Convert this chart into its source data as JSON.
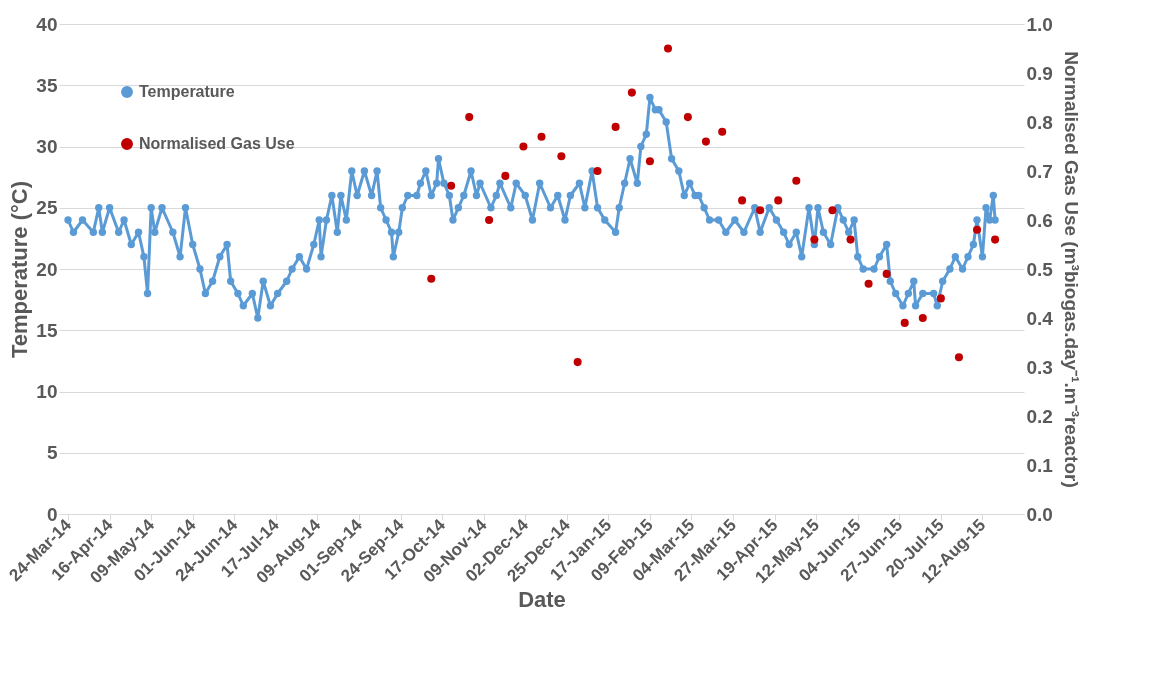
{
  "chart_data": {
    "type": "line",
    "xlabel": "Date",
    "ylabel": "Temperature (°C)",
    "y2label": "Normalised  Gas Use (m³biogas.day⁻¹.m⁻³reactor)",
    "xlim": [
      "2014-03-19",
      "2015-09-04"
    ],
    "xticks": [
      {
        "value": "2014-03-24",
        "label": "24-Mar-14"
      },
      {
        "value": "2014-04-16",
        "label": "16-Apr-14"
      },
      {
        "value": "2014-05-09",
        "label": "09-May-14"
      },
      {
        "value": "2014-06-01",
        "label": "01-Jun-14"
      },
      {
        "value": "2014-06-24",
        "label": "24-Jun-14"
      },
      {
        "value": "2014-07-17",
        "label": "17-Jul-14"
      },
      {
        "value": "2014-08-09",
        "label": "09-Aug-14"
      },
      {
        "value": "2014-09-01",
        "label": "01-Sep-14"
      },
      {
        "value": "2014-09-24",
        "label": "24-Sep-14"
      },
      {
        "value": "2014-10-17",
        "label": "17-Oct-14"
      },
      {
        "value": "2014-11-09",
        "label": "09-Nov-14"
      },
      {
        "value": "2014-12-02",
        "label": "02-Dec-14"
      },
      {
        "value": "2014-12-25",
        "label": "25-Dec-14"
      },
      {
        "value": "2015-01-17",
        "label": "17-Jan-15"
      },
      {
        "value": "2015-02-09",
        "label": "09-Feb-15"
      },
      {
        "value": "2015-03-04",
        "label": "04-Mar-15"
      },
      {
        "value": "2015-03-27",
        "label": "27-Mar-15"
      },
      {
        "value": "2015-04-19",
        "label": "19-Apr-15"
      },
      {
        "value": "2015-05-12",
        "label": "12-May-15"
      },
      {
        "value": "2015-06-04",
        "label": "04-Jun-15"
      },
      {
        "value": "2015-06-27",
        "label": "27-Jun-15"
      },
      {
        "value": "2015-07-20",
        "label": "20-Jul-15"
      },
      {
        "value": "2015-08-12",
        "label": "12-Aug-15"
      }
    ],
    "ylim": [
      0,
      40
    ],
    "yticks": [
      0,
      5,
      10,
      15,
      20,
      25,
      30,
      35,
      40
    ],
    "y2lim": [
      0,
      1
    ],
    "y2ticks": [
      {
        "value": 0,
        "label": "0.0"
      },
      0.1,
      0.2,
      0.3,
      0.4,
      0.5,
      0.6,
      0.7,
      0.8,
      0.9,
      {
        "value": 1,
        "label": "1.0"
      }
    ],
    "grid": "y",
    "legend": "top left",
    "series": [
      {
        "name": "Temperature",
        "marker": "circle",
        "color": "#5b9bd5",
        "x": [
          "2014-03-24",
          "2014-03-27",
          "2014-04-01",
          "2014-04-07",
          "2014-04-10",
          "2014-04-12",
          "2014-04-16",
          "2014-04-21",
          "2014-04-24",
          "2014-04-28",
          "2014-05-02",
          "2014-05-05",
          "2014-05-07",
          "2014-05-09",
          "2014-05-11",
          "2014-05-15",
          "2014-05-21",
          "2014-05-25",
          "2014-05-28",
          "2014-06-01",
          "2014-06-05",
          "2014-06-08",
          "2014-06-12",
          "2014-06-16",
          "2014-06-20",
          "2014-06-22",
          "2014-06-26",
          "2014-06-29",
          "2014-07-04",
          "2014-07-07",
          "2014-07-10",
          "2014-07-14",
          "2014-07-18",
          "2014-07-23",
          "2014-07-26",
          "2014-07-30",
          "2014-08-03",
          "2014-08-07",
          "2014-08-10",
          "2014-08-11",
          "2014-08-14",
          "2014-08-17",
          "2014-08-20",
          "2014-08-22",
          "2014-08-25",
          "2014-08-28",
          "2014-08-31",
          "2014-09-04",
          "2014-09-08",
          "2014-09-11",
          "2014-09-13",
          "2014-09-16",
          "2014-09-19",
          "2014-09-20",
          "2014-09-23",
          "2014-09-25",
          "2014-09-28",
          "2014-10-03",
          "2014-10-05",
          "2014-10-08",
          "2014-10-11",
          "2014-10-14",
          "2014-10-15",
          "2014-10-18",
          "2014-10-21",
          "2014-10-23",
          "2014-10-26",
          "2014-10-29",
          "2014-11-02",
          "2014-11-05",
          "2014-11-07",
          "2014-11-13",
          "2014-11-16",
          "2014-11-18",
          "2014-11-24",
          "2014-11-27",
          "2014-12-02",
          "2014-12-06",
          "2014-12-10",
          "2014-12-16",
          "2014-12-20",
          "2014-12-24",
          "2014-12-27",
          "2015-01-01",
          "2015-01-04",
          "2015-01-08",
          "2015-01-11",
          "2015-01-15",
          "2015-01-21",
          "2015-01-23",
          "2015-01-26",
          "2015-01-29",
          "2015-02-02",
          "2015-02-04",
          "2015-02-07",
          "2015-02-09",
          "2015-02-12",
          "2015-02-14",
          "2015-02-18",
          "2015-02-21",
          "2015-02-25",
          "2015-02-28",
          "2015-03-03",
          "2015-03-06",
          "2015-03-08",
          "2015-03-11",
          "2015-03-14",
          "2015-03-19",
          "2015-03-23",
          "2015-03-28",
          "2015-04-02",
          "2015-04-08",
          "2015-04-11",
          "2015-04-16",
          "2015-04-20",
          "2015-04-24",
          "2015-04-27",
          "2015-05-01",
          "2015-05-04",
          "2015-05-08",
          "2015-05-11",
          "2015-05-13",
          "2015-05-16",
          "2015-05-20",
          "2015-05-24",
          "2015-05-27",
          "2015-05-30",
          "2015-06-02",
          "2015-06-04",
          "2015-06-07",
          "2015-06-13",
          "2015-06-16",
          "2015-06-20",
          "2015-06-22",
          "2015-06-25",
          "2015-06-29",
          "2015-07-02",
          "2015-07-05",
          "2015-07-06",
          "2015-07-10",
          "2015-07-16",
          "2015-07-18",
          "2015-07-21",
          "2015-07-25",
          "2015-07-28",
          "2015-08-01",
          "2015-08-04",
          "2015-08-07",
          "2015-08-09",
          "2015-08-12",
          "2015-08-14",
          "2015-08-16",
          "2015-08-18",
          "2015-08-19"
        ],
        "values": [
          24,
          23,
          24,
          23,
          25,
          23,
          25,
          23,
          24,
          22,
          23,
          21,
          18,
          25,
          23,
          25,
          23,
          21,
          25,
          22,
          20,
          18,
          19,
          21,
          22,
          19,
          18,
          17,
          18,
          16,
          19,
          17,
          18,
          19,
          20,
          21,
          20,
          22,
          24,
          21,
          24,
          26,
          23,
          26,
          24,
          28,
          26,
          28,
          26,
          28,
          25,
          24,
          23,
          21,
          23,
          25,
          26,
          26,
          27,
          28,
          26,
          27,
          29,
          27,
          26,
          24,
          25,
          26,
          28,
          26,
          27,
          25,
          26,
          27,
          25,
          27,
          26,
          24,
          27,
          25,
          26,
          24,
          26,
          27,
          25,
          28,
          25,
          24,
          23,
          25,
          27,
          29,
          27,
          30,
          31,
          34,
          33,
          33,
          32,
          29,
          28,
          26,
          27,
          26,
          26,
          25,
          24,
          24,
          23,
          24,
          23,
          25,
          23,
          25,
          24,
          23,
          22,
          23,
          21,
          25,
          22,
          25,
          23,
          22,
          25,
          24,
          23,
          24,
          21,
          20,
          20,
          21,
          22,
          19,
          18,
          17,
          18,
          19,
          17,
          18,
          18,
          17,
          19,
          20,
          21,
          20,
          21,
          22,
          24,
          21,
          25,
          24,
          26,
          24
        ]
      },
      {
        "name": "Normalised Gas Use",
        "type": "scatter",
        "marker": "circle",
        "axis": "y2",
        "color": "#c00000",
        "x": [
          "2014-10-11",
          "2014-10-22",
          "2014-11-01",
          "2014-11-12",
          "2014-11-21",
          "2014-12-01",
          "2014-12-11",
          "2014-12-22",
          "2014-12-31",
          "2015-01-11",
          "2015-01-21",
          "2015-01-30",
          "2015-02-09",
          "2015-02-19",
          "2015-03-02",
          "2015-03-12",
          "2015-03-21",
          "2015-04-01",
          "2015-04-11",
          "2015-04-21",
          "2015-05-01",
          "2015-05-11",
          "2015-05-21",
          "2015-05-31",
          "2015-06-10",
          "2015-06-20",
          "2015-06-30",
          "2015-07-10",
          "2015-07-20",
          "2015-07-30",
          "2015-08-09",
          "2015-08-19"
        ],
        "values": [
          0.48,
          0.67,
          0.81,
          0.6,
          0.69,
          0.75,
          0.77,
          0.73,
          0.31,
          0.7,
          0.79,
          0.86,
          0.72,
          0.95,
          0.81,
          0.76,
          0.78,
          0.64,
          0.62,
          0.64,
          0.68,
          0.56,
          0.62,
          0.56,
          0.47,
          0.49,
          0.39,
          0.4,
          0.44,
          0.32,
          0.58,
          0.56
        ]
      }
    ]
  }
}
